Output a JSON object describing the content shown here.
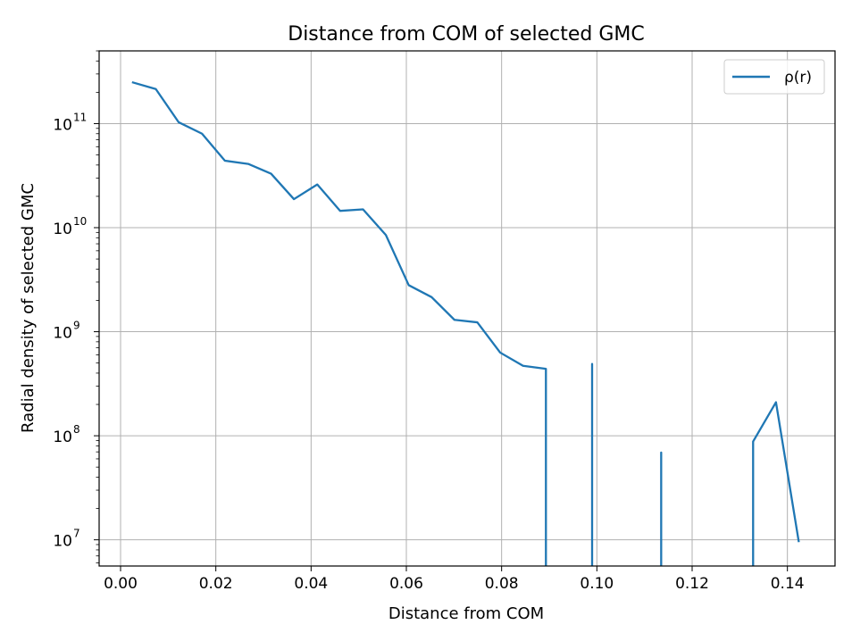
{
  "chart_data": {
    "type": "line",
    "title": "Distance from COM of selected GMC",
    "xlabel": "Distance from COM",
    "ylabel": "Radial density of selected GMC",
    "xlim": [
      -0.0045,
      0.15
    ],
    "ylim": [
      5600000.0,
      500000000000.0
    ],
    "yscale": "log",
    "grid": true,
    "legend_position": "top-right",
    "line_color": "#1f77b4",
    "x_ticks": [
      {
        "value": 0.0,
        "label": "0.00"
      },
      {
        "value": 0.02,
        "label": "0.02"
      },
      {
        "value": 0.04,
        "label": "0.04"
      },
      {
        "value": 0.06,
        "label": "0.06"
      },
      {
        "value": 0.08,
        "label": "0.08"
      },
      {
        "value": 0.1,
        "label": "0.10"
      },
      {
        "value": 0.12,
        "label": "0.12"
      },
      {
        "value": 0.14,
        "label": "0.14"
      }
    ],
    "y_ticks": [
      {
        "value": 10000000.0,
        "base": "10",
        "exp": "7"
      },
      {
        "value": 100000000.0,
        "base": "10",
        "exp": "8"
      },
      {
        "value": 1000000000.0,
        "base": "10",
        "exp": "9"
      },
      {
        "value": 10000000000.0,
        "base": "10",
        "exp": "10"
      },
      {
        "value": 100000000000.0,
        "base": "10",
        "exp": "11"
      }
    ],
    "series": [
      {
        "name": "ρ(r)",
        "segments": [
          [
            [
              0.0024,
              250000000000.0
            ],
            [
              0.0074,
              215000000000.0
            ],
            [
              0.0122,
              103000000000.0
            ],
            [
              0.0171,
              80000000000.0
            ],
            [
              0.0219,
              44000000000.0
            ],
            [
              0.0268,
              41000000000.0
            ],
            [
              0.0316,
              33000000000.0
            ],
            [
              0.0364,
              18800000000.0
            ],
            [
              0.0413,
              26000000000.0
            ],
            [
              0.0461,
              14500000000.0
            ],
            [
              0.0509,
              15000000000.0
            ],
            [
              0.0557,
              8500000000.0
            ],
            [
              0.0605,
              2800000000.0
            ],
            [
              0.0653,
              2150000000.0
            ],
            [
              0.0701,
              1300000000.0
            ],
            [
              0.0749,
              1230000000.0
            ],
            [
              0.0797,
              630000000.0
            ],
            [
              0.0845,
              470000000.0
            ],
            [
              0.0893,
              440000000.0
            ],
            [
              0.0893,
              5600000.0
            ]
          ],
          [
            [
              0.099,
              5600000.0
            ],
            [
              0.099,
              490000000.0
            ],
            [
              0.099,
              5600000.0
            ]
          ],
          [
            [
              0.1135,
              5600000.0
            ],
            [
              0.1135,
              69000000.0
            ],
            [
              0.1135,
              5600000.0
            ]
          ],
          [
            [
              0.1328,
              5600000.0
            ],
            [
              0.1328,
              88000000.0
            ],
            [
              0.1376,
              210000000.0
            ],
            [
              0.1424,
              9500000.0
            ]
          ]
        ]
      }
    ]
  }
}
